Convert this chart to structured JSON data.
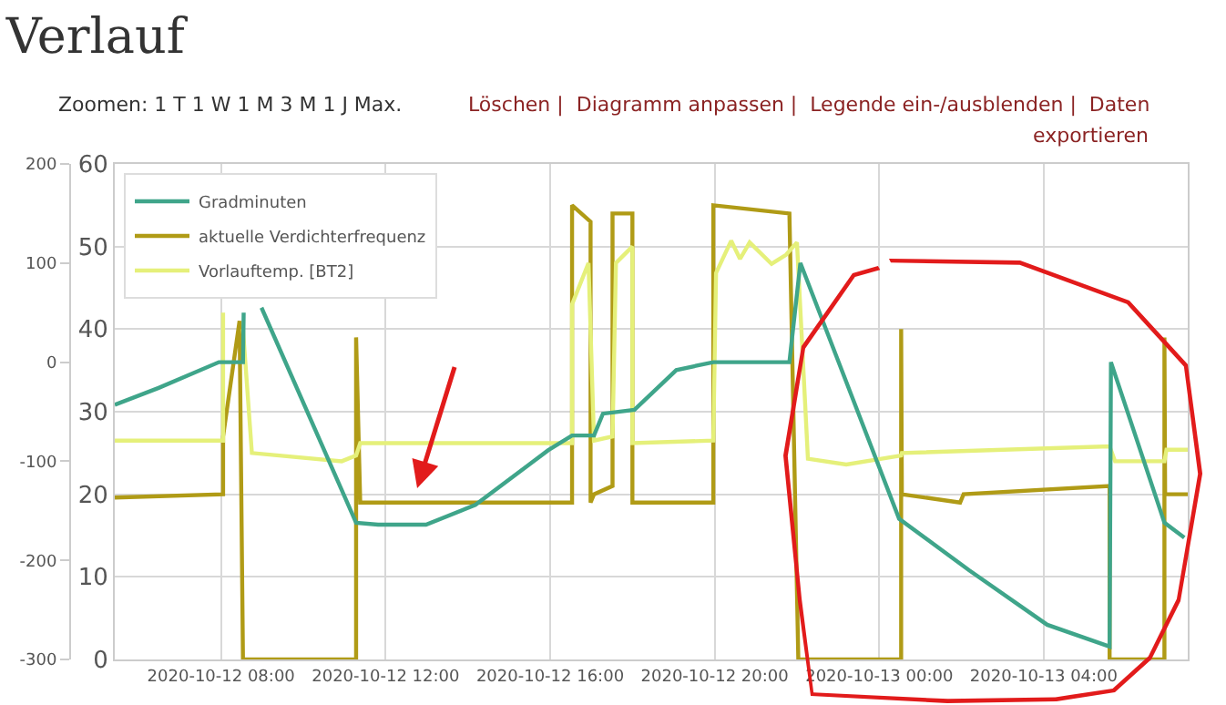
{
  "chart_data": {
    "type": "line",
    "title": "Verlauf",
    "annotations": [
      "Zoomen: 1 T 1 W 1 M 3 M 1 J Max.",
      "Löschen |  Diagramm anpassen |  Legende ein-/ausblenden |  Daten",
      "exportieren"
    ],
    "xlim": [
      "2020-10-12T05:25",
      "2020-10-13T07:30"
    ],
    "xticks": [
      {
        "value": "2020-10-12T08:00",
        "label": "2020-10-12 08:00"
      },
      {
        "value": "2020-10-12T12:00",
        "label": "2020-10-12 12:00"
      },
      {
        "value": "2020-10-12T16:00",
        "label": "2020-10-12 16:00"
      },
      {
        "value": "2020-10-12T20:00",
        "label": "2020-10-12 20:00"
      },
      {
        "value": "2020-10-13T00:00",
        "label": "2020-10-13 00:00"
      },
      {
        "value": "2020-10-13T04:00",
        "label": "2020-10-13 04:00"
      }
    ],
    "ylim": [
      0,
      60
    ],
    "yticks": [
      0,
      10,
      20,
      30,
      40,
      50,
      60
    ],
    "y2lim": [
      -300,
      200
    ],
    "y2ticks": [
      -300,
      -200,
      -100,
      0,
      100,
      200
    ],
    "grid": true,
    "legend": "top left",
    "marker": "none",
    "line_style": "solid",
    "series": [
      {
        "name": "Gradminuten",
        "color": "#3fa58a",
        "axis": "y2",
        "x": [
          "2020-10-12T05:25",
          "2020-10-12T06:29",
          "2020-10-12T07:57",
          "2020-10-12T08:32",
          "2020-10-12T08:33",
          "2020-10-12T08:35",
          "2020-10-12T08:59",
          "2020-10-12T11:17",
          "2020-10-12T11:49",
          "2020-10-12T12:59",
          "2020-10-12T14:11",
          "2020-10-12T15:57",
          "2020-10-12T16:32",
          "2020-10-12T17:04",
          "2020-10-12T17:17",
          "2020-10-12T18:03",
          "2020-10-12T19:04",
          "2020-10-12T19:58",
          "2020-10-12T21:49",
          "2020-10-12T22:05",
          "2020-10-13T00:29",
          "2020-10-13T02:11",
          "2020-10-13T04:05",
          "2020-10-13T05:36",
          "2020-10-13T05:38",
          "2020-10-13T06:56",
          "2020-10-13T07:25"
        ],
        "values": [
          -43,
          -26,
          0,
          0,
          50,
          null,
          55,
          -162,
          -164,
          -164,
          -144,
          -89,
          -74,
          -74,
          -52,
          -48,
          -8,
          0,
          0,
          100,
          -158,
          -210,
          -265,
          -287,
          0,
          -162,
          -177
        ]
      },
      {
        "name": "aktuelle Verdichterfrequenz",
        "color": "#b09b16",
        "x": [
          "2020-10-12T05:25",
          "2020-10-12T08:03",
          "2020-10-12T08:03",
          "2020-10-12T08:27",
          "2020-10-12T08:32",
          "2020-10-12T11:17",
          "2020-10-12T11:17",
          "2020-10-12T11:23",
          "2020-10-12T16:32",
          "2020-10-12T16:32",
          "2020-10-12T16:59",
          "2020-10-12T16:59",
          "2020-10-12T17:04",
          "2020-10-12T17:31",
          "2020-10-12T17:31",
          "2020-10-12T18:00",
          "2020-10-12T18:00",
          "2020-10-12T19:58",
          "2020-10-12T19:58",
          "2020-10-12T21:49",
          "2020-10-12T22:02",
          "2020-10-13T00:32",
          "2020-10-13T00:32",
          "2020-10-13T00:33",
          "2020-10-13T01:58",
          "2020-10-13T02:03",
          "2020-10-13T05:36",
          "2020-10-13T05:36",
          "2020-10-13T06:56",
          "2020-10-13T06:56",
          "2020-10-13T06:57",
          "2020-10-13T07:30"
        ],
        "values": [
          19.6,
          20,
          27,
          41,
          0,
          0,
          39,
          19,
          19,
          55,
          53,
          19,
          20,
          21,
          54,
          54,
          19,
          19,
          55,
          54,
          0,
          0,
          40,
          20,
          19,
          20,
          21,
          0,
          0,
          39,
          20,
          20
        ]
      },
      {
        "name": "Vorlauftemp. [BT2]",
        "color": "#e5f07a",
        "x": [
          "2020-10-12T05:25",
          "2020-10-12T08:03",
          "2020-10-12T08:03",
          "2020-10-12T08:05",
          "2020-10-12T08:32",
          "2020-10-12T08:45",
          "2020-10-12T10:56",
          "2020-10-12T11:17",
          "2020-10-12T11:23",
          "2020-10-12T16:32",
          "2020-10-12T16:32",
          "2020-10-12T16:56",
          "2020-10-12T17:04",
          "2020-10-12T17:31",
          "2020-10-12T17:36",
          "2020-10-12T18:00",
          "2020-10-12T18:00",
          "2020-10-12T19:58",
          "2020-10-12T20:02",
          "2020-10-12T20:24",
          "2020-10-12T20:37",
          "2020-10-12T20:51",
          "2020-10-12T21:23",
          "2020-10-12T21:44",
          "2020-10-12T22:00",
          "2020-10-12T22:16",
          "2020-10-12T23:12",
          "2020-10-13T00:32",
          "2020-10-13T00:33",
          "2020-10-13T05:36",
          "2020-10-13T05:44",
          "2020-10-13T06:56",
          "2020-10-13T06:59",
          "2020-10-13T07:30"
        ],
        "values": [
          26.5,
          26.5,
          42,
          null,
          40,
          25,
          24,
          24.7,
          26.2,
          26.2,
          43,
          48,
          26.5,
          27,
          48,
          50,
          26.2,
          26.5,
          46.8,
          50.7,
          48.5,
          50.5,
          47.9,
          49,
          50.5,
          24.3,
          23.6,
          24.7,
          25,
          25.8,
          24,
          24,
          25.4,
          25.4
        ]
      }
    ]
  }
}
